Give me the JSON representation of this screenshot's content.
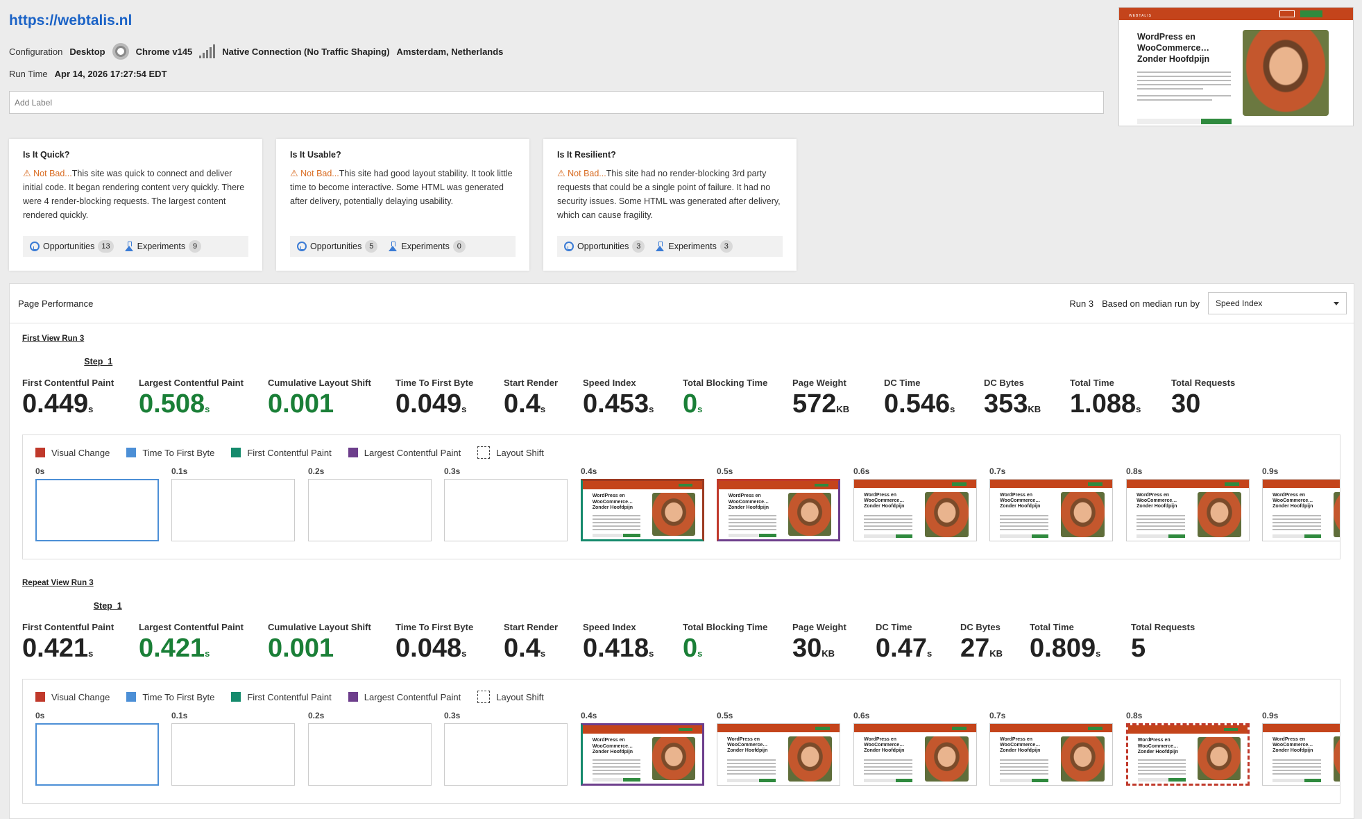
{
  "header": {
    "url": "https://webtalis.nl",
    "config_label": "Configuration",
    "device": "Desktop",
    "browser": "Chrome v145",
    "connection": "Native Connection (No Traffic Shaping)",
    "location": "Amsterdam, Netherlands",
    "runtime_label": "Run Time",
    "runtime": "Apr 14, 2026 17:27:54 EDT",
    "label_placeholder": "Add Label"
  },
  "thumbnail": {
    "headline": "WordPress en WooCommerce… Zonder Hoofdpijn",
    "brand": "WEBTALIS"
  },
  "cards": [
    {
      "title": "Is It Quick?",
      "verdict": "Not Bad...",
      "text": "This site was quick to connect and deliver initial code. It began rendering content very quickly. There were 4 render-blocking requests. The largest content rendered quickly.",
      "opp_label": "Opportunities",
      "opp_count": "13",
      "exp_label": "Experiments",
      "exp_count": "9"
    },
    {
      "title": "Is It Usable?",
      "verdict": "Not Bad...",
      "text": "This site had good layout stability. It took little time to become interactive. Some HTML was generated after delivery, potentially delaying usability.",
      "opp_label": "Opportunities",
      "opp_count": "5",
      "exp_label": "Experiments",
      "exp_count": "0"
    },
    {
      "title": "Is It Resilient?",
      "verdict": "Not Bad...",
      "text": "This site had no render-blocking 3rd party requests that could be a single point of failure. It had no security issues. Some HTML was generated after delivery, which can cause fragility.",
      "opp_label": "Opportunities",
      "opp_count": "3",
      "exp_label": "Experiments",
      "exp_count": "3"
    }
  ],
  "performance": {
    "title": "Page Performance",
    "run": "Run 3",
    "basis": "Based on median run by",
    "selected_metric": "Speed Index"
  },
  "first_view": {
    "title": "First View Run 3",
    "step": "Step_1",
    "metrics": [
      {
        "label": "First Contentful Paint",
        "value": "0.449",
        "unit": "s",
        "good": false
      },
      {
        "label": "Largest Contentful Paint",
        "value": "0.508",
        "unit": "s",
        "good": true
      },
      {
        "label": "Cumulative Layout Shift",
        "value": "0.001",
        "unit": "",
        "good": true
      },
      {
        "label": "Time To First Byte",
        "value": "0.049",
        "unit": "s",
        "good": false
      },
      {
        "label": "Start Render",
        "value": "0.4",
        "unit": "s",
        "good": false
      },
      {
        "label": "Speed Index",
        "value": "0.453",
        "unit": "s",
        "good": false
      },
      {
        "label": "Total Blocking Time",
        "value": "0",
        "unit": "s",
        "good": true
      },
      {
        "label": "Page Weight",
        "value": "572",
        "unit": "KB",
        "good": false
      },
      {
        "label": "DC Time",
        "value": "0.546",
        "unit": "s",
        "good": false
      },
      {
        "label": "DC Bytes",
        "value": "353",
        "unit": "KB",
        "good": false
      },
      {
        "label": "Total Time",
        "value": "1.088",
        "unit": "s",
        "good": false
      },
      {
        "label": "Total Requests",
        "value": "30",
        "unit": "",
        "good": false
      }
    ],
    "frames": [
      "0s",
      "0.1s",
      "0.2s",
      "0.3s",
      "0.4s",
      "0.5s",
      "0.6s",
      "0.7s",
      "0.8s",
      "0.9s"
    ]
  },
  "repeat_view": {
    "title": "Repeat View Run 3",
    "step": "Step_1",
    "metrics": [
      {
        "label": "First Contentful Paint",
        "value": "0.421",
        "unit": "s",
        "good": false
      },
      {
        "label": "Largest Contentful Paint",
        "value": "0.421",
        "unit": "s",
        "good": true
      },
      {
        "label": "Cumulative Layout Shift",
        "value": "0.001",
        "unit": "",
        "good": true
      },
      {
        "label": "Time To First Byte",
        "value": "0.048",
        "unit": "s",
        "good": false
      },
      {
        "label": "Start Render",
        "value": "0.4",
        "unit": "s",
        "good": false
      },
      {
        "label": "Speed Index",
        "value": "0.418",
        "unit": "s",
        "good": false
      },
      {
        "label": "Total Blocking Time",
        "value": "0",
        "unit": "s",
        "good": true
      },
      {
        "label": "Page Weight",
        "value": "30",
        "unit": "KB",
        "good": false
      },
      {
        "label": "DC Time",
        "value": "0.47",
        "unit": "s",
        "good": false
      },
      {
        "label": "DC Bytes",
        "value": "27",
        "unit": "KB",
        "good": false
      },
      {
        "label": "Total Time",
        "value": "0.809",
        "unit": "s",
        "good": false
      },
      {
        "label": "Total Requests",
        "value": "5",
        "unit": "",
        "good": false
      }
    ],
    "frames": [
      "0s",
      "0.1s",
      "0.2s",
      "0.3s",
      "0.4s",
      "0.5s",
      "0.6s",
      "0.7s",
      "0.8s",
      "0.9s"
    ]
  },
  "legend": [
    {
      "label": "Visual Change",
      "color": "#c0392b"
    },
    {
      "label": "Time To First Byte",
      "color": "#4c8fd6"
    },
    {
      "label": "First Contentful Paint",
      "color": "#158a6c"
    },
    {
      "label": "Largest Contentful Paint",
      "color": "#6d3e8c"
    },
    {
      "label": "Layout Shift",
      "color": ""
    }
  ],
  "colors": {
    "good": "#1a7f37",
    "warn": "#d86a1f",
    "link": "#1a62c6",
    "brand": "#c4441b"
  }
}
